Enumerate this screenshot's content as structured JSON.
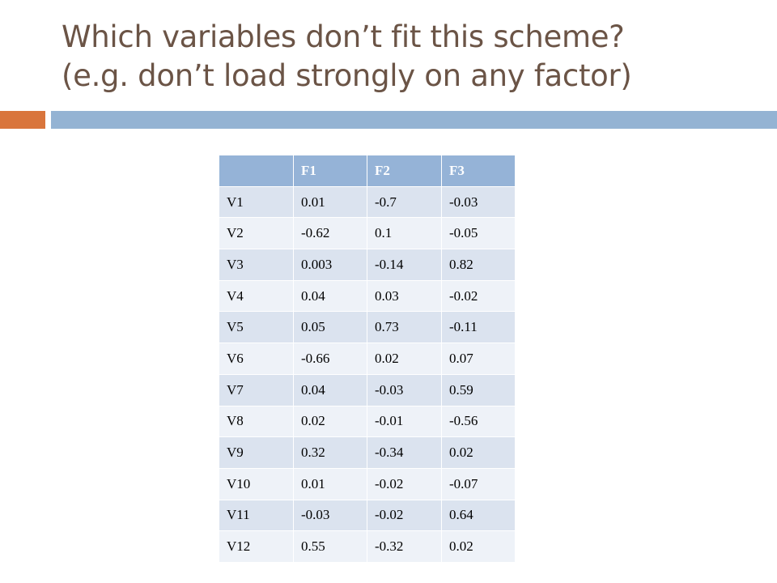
{
  "slide": {
    "title_line1": "Which variables don’t fit this scheme?",
    "title_line2": "(e.g. don’t load strongly on any factor)"
  },
  "colors": {
    "title_text": "#6b5446",
    "accent_orange": "#d9753c",
    "accent_blue": "#94b3d3",
    "table_header": "#95b3d7",
    "row_band_dark": "#dbe3ef",
    "row_band_light": "#eef2f8"
  },
  "table": {
    "headers": [
      "",
      "F1",
      "F2",
      "F3"
    ],
    "rows": [
      [
        "V1",
        "0.01",
        "-0.7",
        "-0.03"
      ],
      [
        "V2",
        "-0.62",
        "0.1",
        "-0.05"
      ],
      [
        "V3",
        "0.003",
        "-0.14",
        "0.82"
      ],
      [
        "V4",
        "0.04",
        "0.03",
        "-0.02"
      ],
      [
        "V5",
        "0.05",
        "0.73",
        "-0.11"
      ],
      [
        "V6",
        "-0.66",
        "0.02",
        "0.07"
      ],
      [
        "V7",
        "0.04",
        "-0.03",
        "0.59"
      ],
      [
        "V8",
        "0.02",
        "-0.01",
        "-0.56"
      ],
      [
        "V9",
        "0.32",
        "-0.34",
        "0.02"
      ],
      [
        "V10",
        "0.01",
        "-0.02",
        "-0.07"
      ],
      [
        "V11",
        "-0.03",
        "-0.02",
        "0.64"
      ],
      [
        "V12",
        "0.55",
        "-0.32",
        "0.02"
      ]
    ]
  }
}
